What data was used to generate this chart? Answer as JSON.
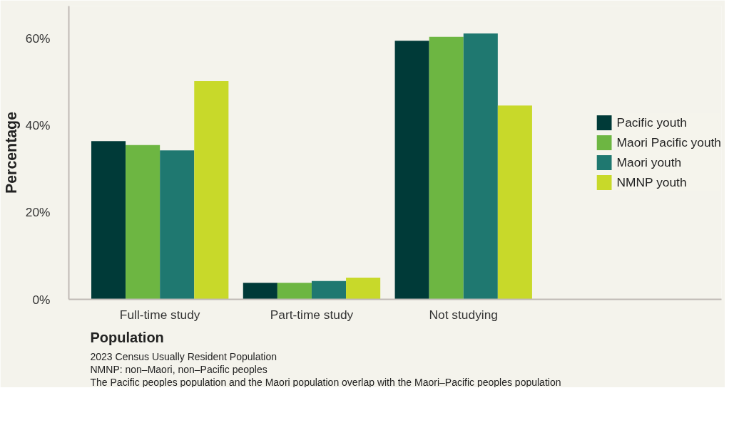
{
  "chart_data": {
    "type": "bar",
    "categories": [
      "Full-time study",
      "Part-time study",
      "Not studying"
    ],
    "series": [
      {
        "name": "Pacific youth",
        "color": "#003a38",
        "values": [
          36.4,
          3.8,
          59.5
        ]
      },
      {
        "name": "Maori Pacific youth",
        "color": "#6db642",
        "values": [
          35.5,
          3.8,
          60.4
        ]
      },
      {
        "name": "Maori youth",
        "color": "#1f7870",
        "values": [
          34.3,
          4.2,
          61.2
        ]
      },
      {
        "name": "NMNP youth",
        "color": "#c8d92a",
        "values": [
          50.2,
          5.0,
          44.6
        ]
      }
    ],
    "xlabel": "Population",
    "ylabel": "Percentage",
    "ylim": [
      0,
      67.5
    ],
    "yticks": [
      {
        "value": 0,
        "label": "0%"
      },
      {
        "value": 20,
        "label": "20%"
      },
      {
        "value": 40,
        "label": "40%"
      },
      {
        "value": 60,
        "label": "60%"
      }
    ],
    "grid": false,
    "legend": "right",
    "annotations": [
      "2023 Census Usually Resident Population",
      "NMNP: non–Maori, non–Pacific peoples",
      "The Pacific peoples population and the Maori population overlap with the Maori–Pacific peoples population"
    ]
  }
}
